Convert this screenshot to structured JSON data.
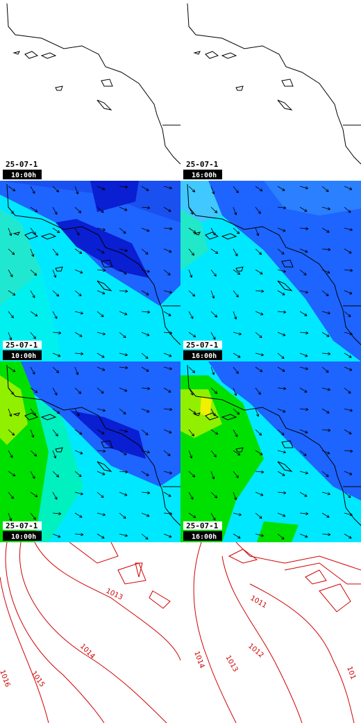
{
  "rows": [
    {
      "panels": [
        {
          "date": "25-07-1",
          "time": "10:00h"
        },
        {
          "date": "25-07-1",
          "time": "16:00h"
        }
      ]
    },
    {
      "panels": [
        {
          "date": "25-07-1",
          "time": "10:00h"
        },
        {
          "date": "25-07-1",
          "time": "16:00h"
        }
      ]
    },
    {
      "panels": [
        {
          "date": "25-07-1",
          "time": "10:00h"
        },
        {
          "date": "25-07-1",
          "time": "16:00h"
        }
      ]
    }
  ],
  "isobars": [
    [
      "1013",
      "1014",
      "1015",
      "1016"
    ],
    [
      "1011",
      "1012",
      "1013",
      "1014",
      "101"
    ]
  ]
}
